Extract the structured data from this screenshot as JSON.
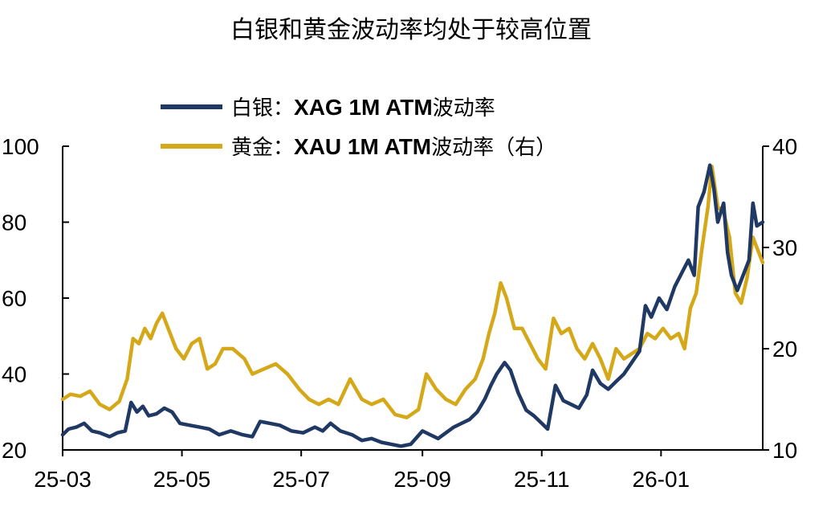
{
  "chart_data": {
    "type": "line",
    "title": "白银和黄金波动率均处于较高位置",
    "x_ticks": [
      "25-03",
      "25-05",
      "25-07",
      "25-09",
      "25-11",
      "26-01"
    ],
    "y_left": {
      "ticks": [
        20,
        40,
        60,
        80,
        100
      ],
      "range": [
        20,
        100
      ]
    },
    "y_right": {
      "ticks": [
        10,
        20,
        30,
        40
      ],
      "range": [
        10,
        40
      ]
    },
    "x_range": [
      "2025-03-01",
      "2026-02-22"
    ],
    "grid": false,
    "legend_position": "top",
    "series": [
      {
        "name": "白银：XAG 1M ATM波动率",
        "legend_prefix": "白银：",
        "legend_main": "XAG 1M ATM",
        "legend_suffix": "波动率",
        "axis": "left",
        "color": "#1f3864",
        "points": [
          [
            "2025-03-01",
            24
          ],
          [
            "2025-03-04",
            25.5
          ],
          [
            "2025-03-08",
            26
          ],
          [
            "2025-03-12",
            27
          ],
          [
            "2025-03-16",
            25
          ],
          [
            "2025-03-20",
            24.5
          ],
          [
            "2025-03-25",
            23.5
          ],
          [
            "2025-03-29",
            24.5
          ],
          [
            "2025-04-02",
            25
          ],
          [
            "2025-04-05",
            32.5
          ],
          [
            "2025-04-08",
            30
          ],
          [
            "2025-04-11",
            31.5
          ],
          [
            "2025-04-14",
            29
          ],
          [
            "2025-04-18",
            29.5
          ],
          [
            "2025-04-22",
            31
          ],
          [
            "2025-04-26",
            30
          ],
          [
            "2025-04-30",
            27
          ],
          [
            "2025-05-05",
            26.5
          ],
          [
            "2025-05-10",
            26
          ],
          [
            "2025-05-15",
            25.5
          ],
          [
            "2025-05-20",
            24
          ],
          [
            "2025-05-26",
            25
          ],
          [
            "2025-06-01",
            24
          ],
          [
            "2025-06-06",
            23.5
          ],
          [
            "2025-06-10",
            27.5
          ],
          [
            "2025-06-15",
            27
          ],
          [
            "2025-06-20",
            26.5
          ],
          [
            "2025-06-26",
            25
          ],
          [
            "2025-07-02",
            24.5
          ],
          [
            "2025-07-08",
            26
          ],
          [
            "2025-07-12",
            25
          ],
          [
            "2025-07-16",
            27
          ],
          [
            "2025-07-21",
            25
          ],
          [
            "2025-07-27",
            24
          ],
          [
            "2025-08-01",
            22.5
          ],
          [
            "2025-08-06",
            23
          ],
          [
            "2025-08-11",
            22
          ],
          [
            "2025-08-16",
            21.5
          ],
          [
            "2025-08-21",
            21
          ],
          [
            "2025-08-26",
            21.5
          ],
          [
            "2025-09-01",
            25
          ],
          [
            "2025-09-05",
            24
          ],
          [
            "2025-09-09",
            23
          ],
          [
            "2025-09-13",
            24.5
          ],
          [
            "2025-09-17",
            26
          ],
          [
            "2025-09-21",
            27
          ],
          [
            "2025-09-25",
            28
          ],
          [
            "2025-09-29",
            30
          ],
          [
            "2025-10-03",
            33.5
          ],
          [
            "2025-10-06",
            37
          ],
          [
            "2025-10-09",
            40
          ],
          [
            "2025-10-13",
            43
          ],
          [
            "2025-10-16",
            41
          ],
          [
            "2025-10-20",
            35
          ],
          [
            "2025-10-24",
            30.5
          ],
          [
            "2025-10-28",
            29
          ],
          [
            "2025-11-01",
            27
          ],
          [
            "2025-11-04",
            25.5
          ],
          [
            "2025-11-08",
            37
          ],
          [
            "2025-11-12",
            33
          ],
          [
            "2025-11-16",
            32
          ],
          [
            "2025-11-20",
            31
          ],
          [
            "2025-11-24",
            34.5
          ],
          [
            "2025-11-27",
            41
          ],
          [
            "2025-12-01",
            37.5
          ],
          [
            "2025-12-05",
            36
          ],
          [
            "2025-12-09",
            38
          ],
          [
            "2025-12-13",
            40
          ],
          [
            "2025-12-17",
            43
          ],
          [
            "2025-12-21",
            46
          ],
          [
            "2025-12-24",
            58
          ],
          [
            "2025-12-27",
            55
          ],
          [
            "2025-12-31",
            60
          ],
          [
            "2026-01-04",
            57
          ],
          [
            "2026-01-08",
            63
          ],
          [
            "2026-01-12",
            67
          ],
          [
            "2026-01-15",
            70
          ],
          [
            "2026-01-18",
            66
          ],
          [
            "2026-01-20",
            84
          ],
          [
            "2026-01-23",
            88
          ],
          [
            "2026-01-26",
            95
          ],
          [
            "2026-01-28",
            89
          ],
          [
            "2026-01-30",
            80
          ],
          [
            "2026-02-02",
            85
          ],
          [
            "2026-02-04",
            72
          ],
          [
            "2026-02-06",
            66
          ],
          [
            "2026-02-09",
            62
          ],
          [
            "2026-02-12",
            66
          ],
          [
            "2026-02-15",
            70
          ],
          [
            "2026-02-17",
            85
          ],
          [
            "2026-02-19",
            79
          ],
          [
            "2026-02-22",
            80
          ]
        ]
      },
      {
        "name": "黄金：XAU 1M ATM波动率（右）",
        "legend_prefix": "黄金：",
        "legend_main": "XAU 1M ATM",
        "legend_suffix": "波动率（右）",
        "axis": "right",
        "color": "#d4a818",
        "points": [
          [
            "2025-03-01",
            15
          ],
          [
            "2025-03-05",
            15.5
          ],
          [
            "2025-03-10",
            15.3
          ],
          [
            "2025-03-15",
            15.8
          ],
          [
            "2025-03-20",
            14.5
          ],
          [
            "2025-03-25",
            14
          ],
          [
            "2025-03-30",
            14.8
          ],
          [
            "2025-04-03",
            17
          ],
          [
            "2025-04-06",
            21
          ],
          [
            "2025-04-09",
            20.5
          ],
          [
            "2025-04-12",
            22
          ],
          [
            "2025-04-15",
            21
          ],
          [
            "2025-04-18",
            22.5
          ],
          [
            "2025-04-21",
            23.5
          ],
          [
            "2025-04-24",
            22
          ],
          [
            "2025-04-28",
            20
          ],
          [
            "2025-05-02",
            19
          ],
          [
            "2025-05-06",
            20.5
          ],
          [
            "2025-05-10",
            21
          ],
          [
            "2025-05-14",
            18
          ],
          [
            "2025-05-18",
            18.5
          ],
          [
            "2025-05-22",
            20
          ],
          [
            "2025-05-27",
            20
          ],
          [
            "2025-06-02",
            19
          ],
          [
            "2025-06-06",
            17.5
          ],
          [
            "2025-06-12",
            18
          ],
          [
            "2025-06-18",
            18.5
          ],
          [
            "2025-06-24",
            17.5
          ],
          [
            "2025-06-30",
            16
          ],
          [
            "2025-07-05",
            15
          ],
          [
            "2025-07-10",
            14.5
          ],
          [
            "2025-07-15",
            15
          ],
          [
            "2025-07-20",
            14.5
          ],
          [
            "2025-07-26",
            17
          ],
          [
            "2025-08-01",
            15
          ],
          [
            "2025-08-06",
            14.5
          ],
          [
            "2025-08-12",
            15
          ],
          [
            "2025-08-18",
            13.5
          ],
          [
            "2025-08-24",
            13.2
          ],
          [
            "2025-08-30",
            14
          ],
          [
            "2025-09-03",
            17.5
          ],
          [
            "2025-09-08",
            16
          ],
          [
            "2025-09-13",
            15
          ],
          [
            "2025-09-18",
            14.5
          ],
          [
            "2025-09-23",
            16
          ],
          [
            "2025-09-28",
            17
          ],
          [
            "2025-10-02",
            19
          ],
          [
            "2025-10-05",
            21.5
          ],
          [
            "2025-10-08",
            23.5
          ],
          [
            "2025-10-11",
            26.5
          ],
          [
            "2025-10-14",
            25
          ],
          [
            "2025-10-18",
            22
          ],
          [
            "2025-10-22",
            22
          ],
          [
            "2025-10-26",
            20.5
          ],
          [
            "2025-10-30",
            19
          ],
          [
            "2025-11-03",
            18
          ],
          [
            "2025-11-07",
            23
          ],
          [
            "2025-11-11",
            21.5
          ],
          [
            "2025-11-15",
            22
          ],
          [
            "2025-11-19",
            20
          ],
          [
            "2025-11-23",
            19
          ],
          [
            "2025-11-27",
            20.5
          ],
          [
            "2025-12-01",
            19
          ],
          [
            "2025-12-05",
            17
          ],
          [
            "2025-12-09",
            20
          ],
          [
            "2025-12-13",
            19
          ],
          [
            "2025-12-17",
            19.5
          ],
          [
            "2025-12-21",
            20
          ],
          [
            "2025-12-25",
            21.5
          ],
          [
            "2025-12-29",
            21
          ],
          [
            "2026-01-02",
            22
          ],
          [
            "2026-01-06",
            21
          ],
          [
            "2026-01-10",
            21.5
          ],
          [
            "2026-01-13",
            20
          ],
          [
            "2026-01-16",
            24
          ],
          [
            "2026-01-19",
            25.5
          ],
          [
            "2026-01-22",
            30
          ],
          [
            "2026-01-25",
            34
          ],
          [
            "2026-01-27",
            38
          ],
          [
            "2026-01-30",
            34
          ],
          [
            "2026-02-02",
            33.5
          ],
          [
            "2026-02-05",
            31
          ],
          [
            "2026-02-08",
            25.5
          ],
          [
            "2026-02-11",
            24.5
          ],
          [
            "2026-02-14",
            27
          ],
          [
            "2026-02-17",
            31
          ],
          [
            "2026-02-20",
            29.5
          ],
          [
            "2026-02-22",
            28.5
          ]
        ]
      }
    ]
  }
}
